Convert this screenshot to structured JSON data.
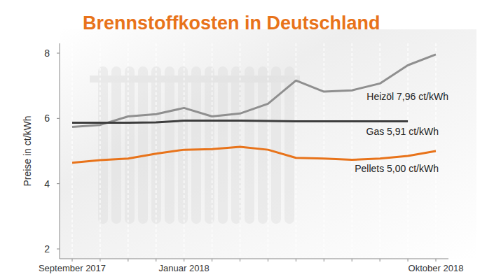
{
  "chart_data": {
    "type": "line",
    "title": "Brennstoffkosten in Deutschland",
    "y_label": "Preise in ct/kWh",
    "categories": [
      "September 2017",
      null,
      null,
      null,
      "Januar 2018",
      null,
      null,
      null,
      null,
      null,
      null,
      null,
      null,
      "Oktober 2018"
    ],
    "series": [
      {
        "name": "Heizöl 7,96 ct/kWh",
        "color": "#8f8f8f",
        "values": [
          5.74,
          5.8,
          6.06,
          6.13,
          6.32,
          6.06,
          6.15,
          6.45,
          7.16,
          6.82,
          6.86,
          7.07,
          7.63,
          7.96
        ]
      },
      {
        "name": "Gas 5,91 ct/kWh",
        "color": "#3d3d3d",
        "values": [
          5.87,
          5.87,
          5.87,
          5.88,
          5.93,
          5.93,
          5.93,
          5.92,
          5.91,
          5.91,
          5.91,
          5.91,
          5.91,
          null
        ]
      },
      {
        "name": "Pellets 5,00 ct/kWh",
        "color": "#e8731a",
        "values": [
          4.64,
          4.72,
          4.77,
          4.92,
          5.04,
          5.06,
          5.13,
          5.04,
          4.79,
          4.77,
          4.73,
          4.77,
          4.85,
          5.0
        ]
      }
    ],
    "ylim": [
      1.7,
      8.3
    ],
    "yticks": [
      2,
      4,
      6,
      8
    ],
    "grid": true
  }
}
